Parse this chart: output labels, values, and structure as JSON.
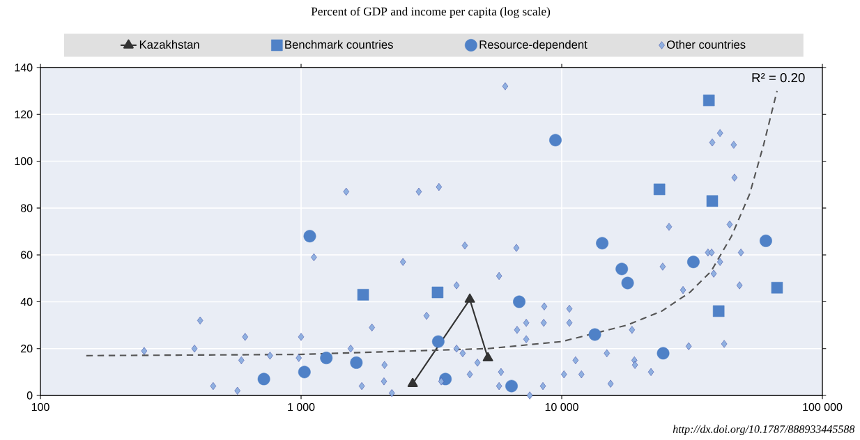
{
  "chart_data": {
    "type": "scatter",
    "title": "Percent of GDP and income per capita (log scale)",
    "log": "x",
    "grid": true,
    "legend": "top",
    "xlim": [
      100,
      100000
    ],
    "ylim": [
      0,
      140
    ],
    "xticks": [
      100,
      {
        "value": 1000,
        "label": "1 000"
      },
      {
        "value": 10000,
        "label": "10 000"
      },
      {
        "value": 100000,
        "label": "100 000"
      }
    ],
    "yticks": [
      0,
      20,
      40,
      60,
      80,
      100,
      120,
      140
    ],
    "series": [
      {
        "name": "Kazakhstan",
        "type": "line",
        "marker": "triangle",
        "line_style": "solid",
        "color": "#333333",
        "x": [
          2680,
          4440,
          5210
        ],
        "values": [
          5,
          41,
          16
        ]
      },
      {
        "name": "Benchmark countries",
        "marker": "square",
        "color": "#4f81c7",
        "x": [
          1730,
          3340,
          36700,
          23700,
          37800,
          67000,
          40000
        ],
        "values": [
          43,
          44,
          126,
          88,
          83,
          46,
          36
        ]
      },
      {
        "name": "Resource-dependent",
        "marker": "circle",
        "color": "#4f81c7",
        "x": [
          720,
          1030,
          1080,
          1250,
          1630,
          3360,
          3580,
          6420,
          6870,
          9460,
          14300,
          17000,
          17900,
          32000,
          60700,
          13400,
          24500
        ],
        "values": [
          7,
          10,
          68,
          16,
          14,
          23,
          7,
          4,
          40,
          109,
          65,
          54,
          48,
          57,
          66,
          26,
          18
        ]
      },
      {
        "name": "Other countries",
        "marker": "diamond",
        "color": "#8fb0e0",
        "x": [
          250,
          390,
          410,
          460,
          570,
          590,
          610,
          760,
          980,
          1000,
          1120,
          1490,
          2830,
          3380,
          2460,
          4250,
          6700,
          6070,
          5750,
          3950,
          3030,
          1870,
          1550,
          2090,
          1710,
          2080,
          2230,
          3950,
          4170,
          4750,
          4440,
          3450,
          5850,
          5750,
          7540,
          8470,
          10200,
          6740,
          7310,
          7310,
          8570,
          8530,
          10700,
          10700,
          11900,
          11300,
          14900,
          15400,
          18600,
          19000,
          19100,
          22000,
          24400,
          25800,
          29200,
          30700,
          36400,
          37600,
          38300,
          40500,
          44100,
          48700,
          48100,
          42000,
          37800,
          40500,
          45700,
          46000
        ],
        "values": [
          19,
          20,
          32,
          4,
          2,
          15,
          25,
          17,
          16,
          25,
          59,
          87,
          87,
          89,
          57,
          64,
          63,
          132,
          51,
          47,
          34,
          29,
          20,
          13,
          4,
          6,
          1,
          20,
          18,
          14,
          9,
          6,
          10,
          4,
          0,
          4,
          9,
          28,
          31,
          24,
          38,
          31,
          37,
          31,
          9,
          15,
          18,
          5,
          28,
          15,
          13,
          10,
          55,
          72,
          45,
          21,
          61,
          61,
          52,
          57,
          73,
          61,
          47,
          22,
          108,
          112,
          107,
          93
        ]
      },
      {
        "type": "line",
        "marker": "none",
        "line_style": "dashed",
        "color": "#555555",
        "x": [
          150,
          980,
          5210,
          10000,
          17800,
          24200,
          31000,
          37400,
          44800,
          52600,
          59500,
          67000
        ],
        "values": [
          17,
          17.5,
          20,
          23,
          30,
          36,
          44,
          53,
          68,
          86,
          107,
          130
        ]
      }
    ],
    "annotations": [
      "R² = 0.20",
      "http://dx.doi.org/10.1787/888933445588"
    ]
  }
}
